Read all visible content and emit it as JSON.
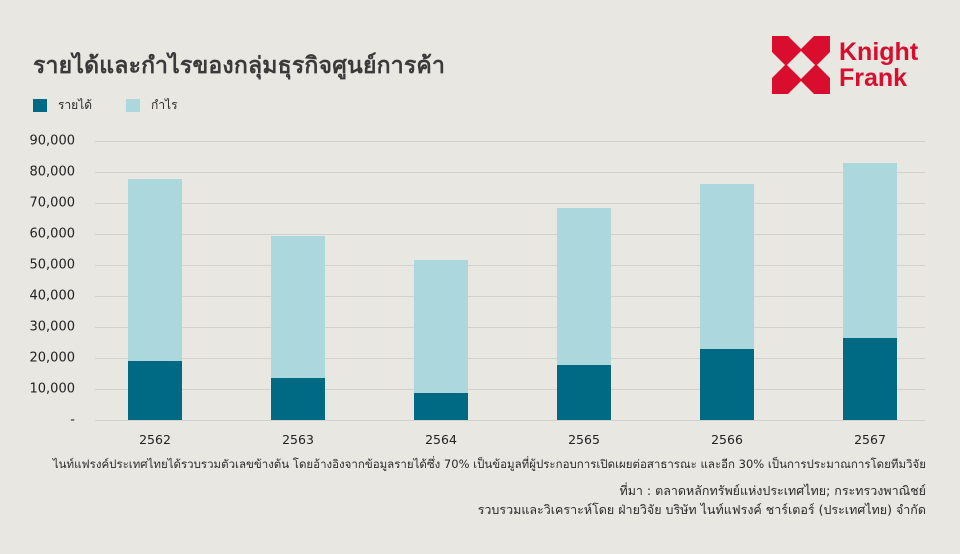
{
  "title": "รายได้และกำไรของกลุ่มธุรกิจศูนย์การค้า",
  "legend": [
    {
      "label": "รายได้",
      "color": "#006a85"
    },
    {
      "label": "กำไร",
      "color": "#abd7dd"
    }
  ],
  "logo": {
    "line1": "Knight",
    "line2": "Frank",
    "color": "#d90e2e"
  },
  "notes": {
    "methodology": "ไนท์แฟรงค์ประเทศไทยได้รวบรวมตัวเลขข้างต้น โดยอ้างอิงจากข้อมูลรายได้ซึ่ง 70% เป็นข้อมูลที่ผู้ประกอบการเปิดเผยต่อสาธารณะ และอีก 30% เป็นการประมาณการโดยทีมวิจัย",
    "source": "ที่มา : ตลาดหลักทรัพย์แห่งประเทศไทย; กระทรวงพาณิชย์",
    "compiled_by": "รวบรวมและวิเคราะห์โดย ฝ่ายวิจัย บริษัท ไนท์แฟรงค์ ชาร์เตอร์ (ประเทศไทย) จำกัด"
  },
  "chart_data": {
    "type": "bar",
    "stacked": true,
    "title": "รายได้และกำไรของกลุ่มธุรกิจศูนย์การค้า",
    "xlabel": "",
    "ylabel": "",
    "categories": [
      "2562",
      "2563",
      "2564",
      "2565",
      "2566",
      "2567"
    ],
    "series": [
      {
        "name": "รายได้",
        "color": "#006a85",
        "values": [
          19000,
          13700,
          8700,
          17700,
          23000,
          26400
        ]
      },
      {
        "name": "กำไร",
        "color": "#abd7dd",
        "values": [
          58600,
          45600,
          42900,
          50800,
          53100,
          56600
        ]
      }
    ],
    "stack_totals": [
      77600,
      59300,
      51600,
      68500,
      76100,
      83000
    ],
    "ylim": [
      0,
      90000
    ],
    "yticks": [
      0,
      10000,
      20000,
      30000,
      40000,
      50000,
      60000,
      70000,
      80000,
      90000
    ],
    "ytick_labels": [
      "-",
      "10,000",
      "20,000",
      "30,000",
      "40,000",
      "50,000",
      "60,000",
      "70,000",
      "80,000",
      "90,000"
    ],
    "grid": true,
    "legend_position": "top-left"
  }
}
